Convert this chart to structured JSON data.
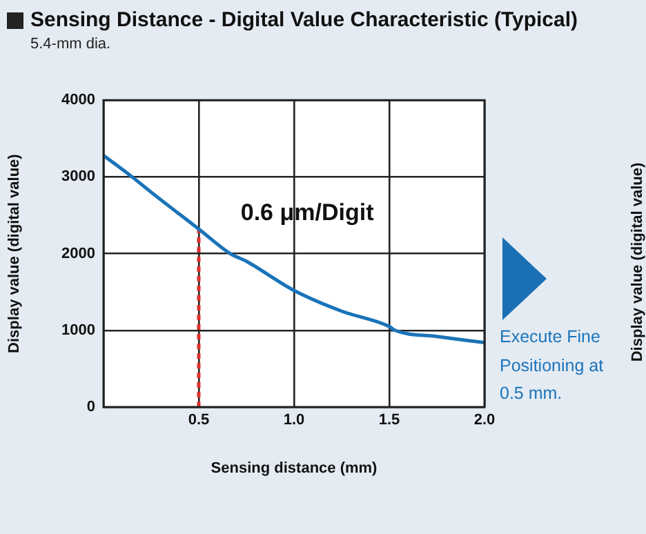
{
  "chart_data": {
    "type": "line",
    "title": "Sensing Distance - Digital Value Characteristic (Typical)",
    "subtitle": "5.4-mm dia.",
    "xlabel": "Sensing distance (mm)",
    "ylabel": "Display value (digital value)",
    "annotations": [
      "0.6 μm/Digit",
      "Execute Fine Positioning at 0.5 mm.",
      "Display value (digital value)"
    ],
    "series": [
      {
        "color": "#1a73b8",
        "x": [
          0,
          0.15,
          0.25,
          0.5,
          0.665,
          0.75,
          1.0,
          1.25,
          1.5,
          1.53,
          1.75,
          2.0
        ],
        "values": [
          3280,
          3000,
          2800,
          2320,
          2000,
          1900,
          1520,
          1250,
          1050,
          1000,
          920,
          840
        ]
      },
      {
        "color": "#e0302c",
        "line_style": "dashed",
        "x": [
          0.5,
          0.5
        ],
        "values": [
          0,
          2320
        ]
      }
    ],
    "xlim": [
      0,
      2.0
    ],
    "xticks": [
      {
        "value": 0,
        "label": null
      },
      0.5,
      {
        "value": 1.0,
        "label": "1.0"
      },
      1.5,
      {
        "value": 2.0,
        "label": "2.0"
      }
    ],
    "ylim": [
      0,
      4000
    ],
    "yticks": [
      0,
      1000,
      2000,
      3000,
      4000
    ],
    "grid": true,
    "legend": false,
    "marker": "none"
  }
}
